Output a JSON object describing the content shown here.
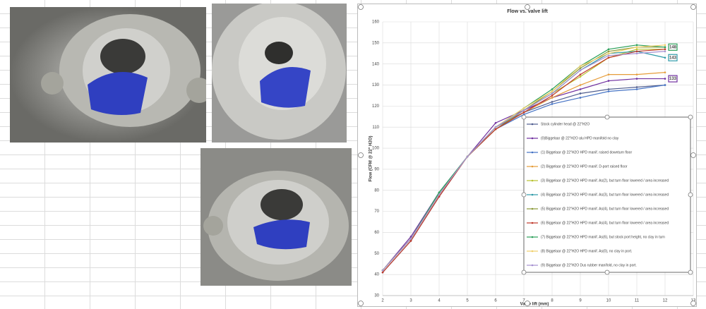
{
  "chart_data": {
    "type": "line",
    "title": "Flow vs. valve lift",
    "x_label": "Valve lift (mm)",
    "y_label": "Flow (CFM @ 22\" H2O)",
    "x": [
      2,
      3,
      4,
      5,
      6,
      7,
      8,
      9,
      10,
      11,
      12
    ],
    "xlim": [
      2,
      13
    ],
    "xticks": [
      2,
      3,
      4,
      5,
      6,
      7,
      8,
      9,
      10,
      11,
      12,
      13
    ],
    "ylim": [
      30,
      160
    ],
    "yticks": [
      30,
      40,
      50,
      60,
      70,
      80,
      90,
      100,
      110,
      120,
      130,
      140,
      150,
      160
    ],
    "grid": true,
    "series": [
      {
        "name": "Stock cylinder head @ 22\"H2O",
        "color": "#4f5d8f",
        "values": [
          41,
          56,
          77,
          96,
          110,
          117,
          122,
          126,
          128,
          129,
          130
        ]
      },
      {
        "name": "(0)Biggelaar @ 22\"H2O alu HPD manifold no clay",
        "color": "#7030a0",
        "values": [
          42,
          58,
          79,
          96,
          112,
          118,
          124,
          128,
          132,
          133,
          133
        ],
        "data_labels": "last"
      },
      {
        "name": "(1) Biggelaar @ 22\"H2O HPD manif. raised downturn floor",
        "color": "#4472c4",
        "values": [
          42,
          57,
          78,
          96,
          109,
          116,
          121,
          124,
          127,
          128,
          130
        ]
      },
      {
        "name": "(2) Biggelaar @ 22\"H2O HPD manif. D-port raised floor",
        "color": "#e69d3a",
        "values": [
          42,
          57,
          78,
          96,
          109,
          117,
          124,
          130,
          135,
          135,
          136
        ]
      },
      {
        "name": "(3) Biggelaar @ 22\"H2O HPD manif. As(2), but turn floor lowered / area increased",
        "color": "#b8c22e",
        "values": [
          42,
          57,
          78,
          96,
          110,
          118,
          126,
          134,
          143,
          147,
          147
        ]
      },
      {
        "name": "(4) Biggelaar @ 22\"H2O HPD manif. As(3), but turn floor lowered / area increased",
        "color": "#2e9aa8",
        "values": [
          42,
          57,
          79,
          96,
          110,
          118,
          126,
          137,
          145,
          146,
          143
        ],
        "data_labels": "last"
      },
      {
        "name": "(5) Biggelaar @ 22\"H2O HPD manif. As(4), but turn floor lowered / area increased",
        "color": "#8a9a3a",
        "values": [
          42,
          57,
          78,
          96,
          109,
          118,
          127,
          138,
          146,
          148,
          148
        ]
      },
      {
        "name": "(6) Biggelaar @ 22\"H2O HPD manif. As(4), but turn floor lowered / area increased",
        "color": "#c0392b",
        "values": [
          41,
          56,
          77,
          96,
          109,
          117,
          125,
          135,
          143,
          146,
          147
        ]
      },
      {
        "name": "(7) Biggelaar @ 22\"H2O HPD manif. As(6), but stock port height, no clay in turn",
        "color": "#2ca05a",
        "values": [
          42,
          57,
          79,
          96,
          110,
          119,
          128,
          139,
          147,
          149,
          148
        ],
        "data_labels": "last"
      },
      {
        "name": "(8) Biggelaar @ 22\"H2O HPD manif. As(0), no clay in port.",
        "color": "#f0cf6a",
        "values": [
          42,
          57,
          78,
          96,
          110,
          119,
          127,
          139,
          145,
          148,
          149
        ]
      },
      {
        "name": "(9) Biggelaar @ 22\"H2O Dus rubber manifold, no clay in port.",
        "color": "#a58fd0",
        "values": [
          42,
          57,
          78,
          96,
          110,
          118,
          126,
          137,
          144,
          145,
          146
        ]
      }
    ]
  }
}
